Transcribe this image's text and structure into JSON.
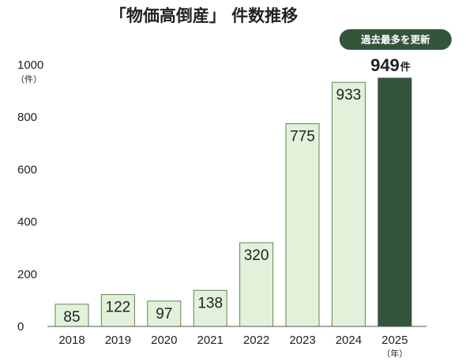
{
  "chart_data": {
    "type": "bar",
    "title": "「物価高倒産」 件数推移",
    "categories": [
      "2018",
      "2019",
      "2020",
      "2021",
      "2022",
      "2023",
      "2024",
      "2025"
    ],
    "values": [
      85,
      122,
      97,
      138,
      320,
      775,
      933,
      949
    ],
    "ylim": [
      0,
      1000
    ],
    "yticks": [
      0,
      200,
      400,
      600,
      800,
      1000
    ],
    "y_unit": "（件）",
    "x_unit": "（年）",
    "grid": false,
    "highlight": {
      "index": 7,
      "value_text": "949",
      "unit": "件",
      "badge": "過去最多を更新"
    },
    "colors": {
      "bar_fill": "#e3f1da",
      "bar_stroke": "#5a8a4a",
      "highlight_fill": "#35553a",
      "badge_fill": "#35553a"
    }
  }
}
